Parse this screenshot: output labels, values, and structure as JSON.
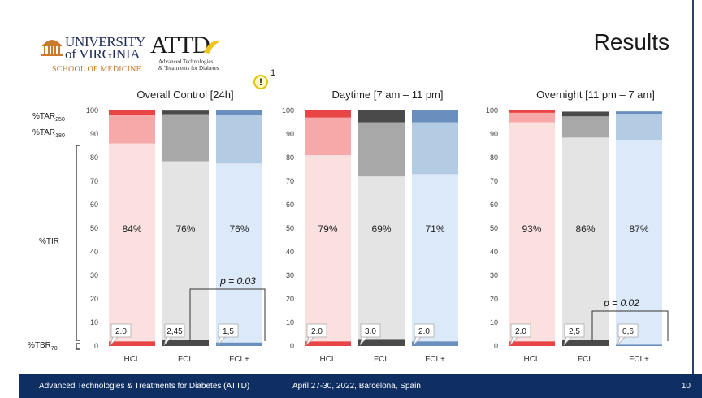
{
  "header": {
    "title": "Results",
    "uva_line1": "UNIVERSITY",
    "uva_line2": "of VIRGINIA",
    "uva_line3": "SCHOOL OF MEDICINE",
    "attd_word": "ATTD",
    "attd_sub1": "Advanced Technologies",
    "attd_sub2": "& Treatments for Diabetes",
    "warning_mark": "!",
    "warning_note": "1"
  },
  "y_axis_labels": {
    "tar250": "%TAR",
    "tar250_sub": "250",
    "tar180": "%TAR",
    "tar180_sub": "180",
    "tir": "%TIR",
    "tbr70": "%TBR",
    "tbr70_sub": "70"
  },
  "footer": {
    "left": "Advanced Technologies & Treatments for Diabetes (ATTD)",
    "center": "April 27-30, 2022, Barcelona, Spain",
    "page": "10"
  },
  "colors": {
    "hcl_tbr": "#e84545",
    "hcl_tir": "#fbe0e0",
    "hcl_tar180": "#f7a8a8",
    "hcl_tar250": "#e84545",
    "fcl_tbr": "#4a4a4a",
    "fcl_tir": "#e4e4e4",
    "fcl_tar180": "#a8a8a8",
    "fcl_tar250": "#4a4a4a",
    "fclp_tbr": "#6a8fbf",
    "fclp_tir": "#dbe9f8",
    "fclp_tar180": "#b4cbe4",
    "fclp_tar250": "#6a8fbf",
    "footer_bg": "#0f2f63"
  },
  "chart_data": [
    {
      "type": "bar",
      "stacked": true,
      "title": "Overall Control [24h]",
      "categories": [
        "HCL",
        "FCL",
        "FCL+"
      ],
      "ylim": [
        0,
        100
      ],
      "yticks": [
        0,
        10,
        20,
        30,
        40,
        50,
        60,
        70,
        80,
        90,
        100
      ],
      "series": [
        {
          "values": [
            2.0,
            2.45,
            1.5
          ]
        },
        {
          "values": [
            84,
            76,
            76
          ]
        },
        {
          "values": [
            12,
            20,
            20.5
          ]
        },
        {
          "values": [
            2,
            1.5,
            2
          ]
        }
      ],
      "tir_labels": [
        "84%",
        "76%",
        "76%"
      ],
      "tbr_labels": [
        "2.0",
        "2,45",
        "1,5"
      ],
      "annotation": "p = 0.03"
    },
    {
      "type": "bar",
      "stacked": true,
      "title": "Daytime [7 am – 11 pm]",
      "categories": [
        "HCL",
        "FCL",
        "FCL+"
      ],
      "ylim": [
        0,
        100
      ],
      "yticks": [
        0,
        10,
        20,
        30,
        40,
        50,
        60,
        70,
        80,
        90,
        100
      ],
      "series": [
        {
          "values": [
            2.0,
            3.0,
            2.0
          ]
        },
        {
          "values": [
            79,
            69,
            71
          ]
        },
        {
          "values": [
            16,
            23,
            22
          ]
        },
        {
          "values": [
            3,
            5,
            5
          ]
        }
      ],
      "tir_labels": [
        "79%",
        "69%",
        "71%"
      ],
      "tbr_labels": [
        "2.0",
        "3.0",
        "2.0"
      ],
      "annotation": ""
    },
    {
      "type": "bar",
      "stacked": true,
      "title": "Overnight [11 pm – 7 am]",
      "categories": [
        "HCL",
        "FCL",
        "FCL+"
      ],
      "ylim": [
        0,
        100
      ],
      "yticks": [
        0,
        10,
        20,
        30,
        40,
        50,
        60,
        70,
        80,
        90,
        100
      ],
      "series": [
        {
          "values": [
            2.0,
            2.5,
            0.6
          ]
        },
        {
          "values": [
            93,
            86,
            87
          ]
        },
        {
          "values": [
            4,
            9,
            11
          ]
        },
        {
          "values": [
            1,
            2,
            1
          ]
        }
      ],
      "tir_labels": [
        "93%",
        "86%",
        "87%"
      ],
      "tbr_labels": [
        "2.0",
        "2,5",
        "0,6"
      ],
      "annotation": "p = 0.02"
    }
  ]
}
